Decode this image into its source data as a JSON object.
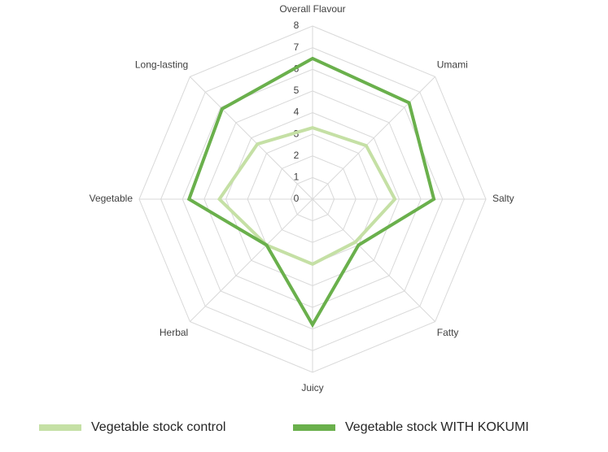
{
  "chart_data": {
    "type": "radar",
    "categories": [
      "Overall Flavour",
      "Umami",
      "Salty",
      "Fatty",
      "Juicy",
      "Herbal",
      "Vegetable",
      "Long-lasting"
    ],
    "series": [
      {
        "name": "Vegetable stock control",
        "color": "#c5e0a5",
        "values": [
          3.3,
          3.5,
          3.8,
          2.8,
          3.0,
          3.0,
          4.3,
          3.6
        ]
      },
      {
        "name": "Vegetable stock WITH KOKUMI",
        "color": "#6ab04c",
        "values": [
          6.5,
          6.3,
          5.6,
          3.0,
          5.8,
          3.0,
          5.7,
          5.9
        ]
      }
    ],
    "ylim": [
      0,
      8
    ],
    "yticks": [
      0,
      1,
      2,
      3,
      4,
      5,
      6,
      7,
      8
    ],
    "grid": true,
    "legend": "bottom"
  }
}
